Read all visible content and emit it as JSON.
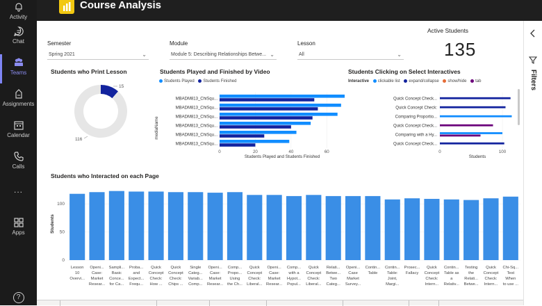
{
  "rail": {
    "items": [
      {
        "label": "Activity",
        "icon": "bell-icon"
      },
      {
        "label": "Chat",
        "icon": "chat-icon"
      },
      {
        "label": "Teams",
        "icon": "teams-icon",
        "active": true
      },
      {
        "label": "Assignments",
        "icon": "assignments-icon"
      },
      {
        "label": "Calendar",
        "icon": "calendar-icon"
      },
      {
        "label": "Calls",
        "icon": "phone-icon"
      },
      {
        "label": "...",
        "icon": "more-icon"
      },
      {
        "label": "Apps",
        "icon": "apps-icon"
      },
      {
        "label": "?",
        "icon": "help-icon"
      }
    ],
    "active_color": "#7f85f5"
  },
  "header": {
    "title": "Course Analysis",
    "icon": "powerbi-icon"
  },
  "slicers": {
    "semester": {
      "label": "Semester",
      "value": "Spring 2021"
    },
    "module": {
      "label": "Module",
      "value": "Module 5: Describing Relationships Betwe..."
    },
    "lesson": {
      "label": "Lesson",
      "value": "All"
    }
  },
  "kpi": {
    "label": "Active Students",
    "value": "135"
  },
  "filters": {
    "label": "Filters"
  },
  "chart_data": [
    {
      "type": "pie",
      "title": "Students who Print Lesson",
      "slices": [
        {
          "name": "",
          "value": 15,
          "label": "15",
          "color": "#12239e"
        },
        {
          "name": "",
          "value": 116,
          "label": "116",
          "color": "#e6e6e6"
        }
      ]
    },
    {
      "type": "bar",
      "orientation": "horizontal",
      "title": "Students Played and Finished by Video",
      "ylabel": "mediaName",
      "xlabel": "Students Played and Students Finished",
      "legend": "top-left",
      "categories": [
        "MBADM813_ChiSqu...",
        "MBADM813_ChiSqu...",
        "MBADM813_ChiSqu...",
        "MBADM813_ChiSqu...",
        "MBADM813_ChiSqu...",
        "MBADM813_ChiSqu..."
      ],
      "xlim": [
        0,
        70
      ],
      "xticks": [
        "0",
        "20",
        "40",
        "60"
      ],
      "series": [
        {
          "name": "Students Played",
          "color": "#118dff",
          "values": [
            70,
            68,
            66,
            51,
            43,
            39
          ]
        },
        {
          "name": "Students Finished",
          "color": "#12239e",
          "values": [
            53,
            55,
            52,
            40,
            25,
            20
          ]
        }
      ]
    },
    {
      "type": "bar",
      "orientation": "horizontal",
      "title": "Students Clicking on Select Interactives",
      "xlabel": "Students",
      "legend_title": "Interactive",
      "legend": "top-left",
      "categories": [
        "Quick Concept Check...",
        "Quick Concept Check:",
        "Comparing Proportio...",
        "Quick Concept Check...",
        "Comparing with a Hy...",
        "Quick Concept Check..."
      ],
      "xlim": [
        0,
        120
      ],
      "xticks": [
        "0",
        "100"
      ],
      "series": [
        {
          "name": "clickable list",
          "color": "#118dff",
          "values": [
            0,
            0,
            115,
            0,
            100,
            0
          ]
        },
        {
          "name": "expand/collapse",
          "color": "#12239e",
          "values": [
            113,
            105,
            0,
            0,
            0,
            103
          ]
        },
        {
          "name": "show/hide",
          "color": "#e66c37",
          "values": [
            0,
            0,
            0,
            0,
            0,
            0
          ]
        },
        {
          "name": "tab",
          "color": "#6b007b",
          "values": [
            0,
            0,
            0,
            85,
            65,
            0
          ]
        }
      ]
    },
    {
      "type": "bar",
      "title": "Students who Interacted on each Page",
      "ylabel": "Students",
      "ylim": [
        0,
        130
      ],
      "yticks": [
        "0",
        "50",
        "100"
      ],
      "color": "#3a8ee6",
      "categories": [
        [
          "Lesson",
          "10",
          "Overvi..."
        ],
        [
          "Openi...",
          "Case:",
          "Market",
          "Resear..."
        ],
        [
          "Sampli...",
          "Basic",
          "Conce...",
          "for Ca..."
        ],
        [
          "Proba...",
          "and",
          "Expect...",
          "Frequ..."
        ],
        [
          "Quick",
          "Concept",
          "Check:",
          "How ..."
        ],
        [
          "Quick",
          "Concept",
          "Check:",
          "Chips ..."
        ],
        [
          "Single",
          "Categ...",
          "Variab...",
          "Comp..."
        ],
        [
          "Openi...",
          "Case:",
          "Market",
          "Resear..."
        ],
        [
          "Comp...",
          "Propo...",
          "Using",
          "the Ch..."
        ],
        [
          "Quick",
          "Concept",
          "Check:",
          "Liberal..."
        ],
        [
          "Openi...",
          "Case:",
          "Market",
          "Resear..."
        ],
        [
          "Comp...",
          "with a",
          "Hypot...",
          "Popul..."
        ],
        [
          "Quick",
          "Concept",
          "Check:",
          "Liberal..."
        ],
        [
          "Relati...",
          "Betwe...",
          "Two",
          "Categ..."
        ],
        [
          "Openi...",
          "Case",
          "Market",
          "Survey..."
        ],
        [
          "Contin...",
          "Table"
        ],
        [
          "Contin...",
          "Table:",
          "Joint,",
          "Margi..."
        ],
        [
          "Prosec...",
          "Fallacy"
        ],
        [
          "Quick",
          "Concept",
          "Check:",
          "Intern..."
        ],
        [
          "Contin...",
          "Table as",
          "a",
          "Relativ..."
        ],
        [
          "Testing",
          "the",
          "Relati...",
          "Betwe..."
        ],
        [
          "Quick",
          "Concept",
          "Check:",
          "Intern..."
        ],
        [
          "Chi-Sq...",
          "Test",
          "When",
          "to use ..."
        ]
      ],
      "values": [
        118,
        121,
        123,
        122,
        122,
        121,
        121,
        120,
        121,
        116,
        116,
        114,
        116,
        114,
        114,
        114,
        108,
        110,
        109,
        108,
        107,
        110,
        113
      ]
    }
  ]
}
